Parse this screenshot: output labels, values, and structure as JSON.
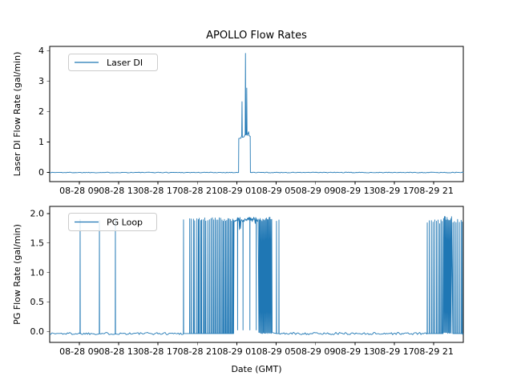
{
  "figure": {
    "title": "APOLLO Flow Rates"
  },
  "xaxis": {
    "label": "Date (GMT)",
    "hours_origin": "08-28 00:00 GMT",
    "range_hours": [
      6,
      48
    ],
    "tick_hours": [
      9,
      13,
      17,
      21,
      25,
      29,
      33,
      37,
      41,
      45
    ],
    "tick_labels": [
      "08-28 09",
      "08-28 13",
      "08-28 17",
      "08-28 21",
      "08-29 01",
      "08-29 05",
      "08-29 09",
      "08-29 13",
      "08-29 17",
      "08-29 21"
    ]
  },
  "chart_data": [
    {
      "type": "line",
      "title": "APOLLO Flow Rates",
      "ylabel": "Laser DI Flow Rate (gal/min)",
      "xlabel": "",
      "ylim": [
        -0.3,
        4.15
      ],
      "yticks": {
        "values": [
          0,
          1,
          2,
          3,
          4
        ],
        "labels": [
          "0",
          "1",
          "2",
          "3",
          "4"
        ]
      },
      "legend": {
        "label": "Laser DI",
        "position": "upper left"
      },
      "grid": false,
      "series": [
        {
          "name": "Laser DI",
          "color": "#1f77b4",
          "segments": [
            {
              "kind": "noise",
              "t0": 6.0,
              "t1": 25.18,
              "level": 0.0,
              "amp": 0.012
            },
            {
              "kind": "poly",
              "points": [
                [
                  25.18,
                  0.0
                ],
                [
                  25.2,
                  1.12
                ],
                [
                  25.42,
                  1.13
                ],
                [
                  25.5,
                  1.22
                ],
                [
                  25.53,
                  2.33
                ],
                [
                  25.56,
                  1.16
                ],
                [
                  25.72,
                  1.17
                ],
                [
                  25.85,
                  1.25
                ],
                [
                  25.88,
                  3.92
                ],
                [
                  25.91,
                  1.24
                ],
                [
                  25.98,
                  1.26
                ],
                [
                  26.01,
                  2.78
                ],
                [
                  26.04,
                  1.22
                ],
                [
                  26.16,
                  1.3
                ],
                [
                  26.2,
                  1.34
                ],
                [
                  26.24,
                  1.21
                ],
                [
                  26.36,
                  1.19
                ],
                [
                  26.38,
                  0.0
                ]
              ]
            },
            {
              "kind": "noise",
              "t0": 26.4,
              "t1": 48.0,
              "level": 0.0,
              "amp": 0.012
            }
          ]
        }
      ]
    },
    {
      "type": "line",
      "title": "",
      "ylabel": "PG Flow Rate (gal/min)",
      "xlabel": "Date (GMT)",
      "ylim": [
        -0.18,
        2.12
      ],
      "yticks": {
        "values": [
          0,
          0.5,
          1,
          1.5,
          2
        ],
        "labels": [
          "0.0",
          "0.5",
          "1.0",
          "1.5",
          "2.0"
        ]
      },
      "legend": {
        "label": "PG Loop",
        "position": "upper left"
      },
      "grid": false,
      "series": [
        {
          "name": "PG Loop",
          "color": "#1f77b4",
          "segments": [
            {
              "kind": "noise",
              "t0": 6.0,
              "t1": 9.07,
              "level": -0.03,
              "amp": 0.02
            },
            {
              "kind": "spike",
              "t": 9.09,
              "base": -0.03,
              "peak": 1.9
            },
            {
              "kind": "noise",
              "t0": 9.11,
              "t1": 11.03,
              "level": -0.03,
              "amp": 0.02
            },
            {
              "kind": "spike",
              "t": 11.05,
              "base": -0.03,
              "peak": 1.88
            },
            {
              "kind": "noise",
              "t0": 11.07,
              "t1": 12.65,
              "level": -0.03,
              "amp": 0.02
            },
            {
              "kind": "spike",
              "t": 12.67,
              "base": -0.03,
              "peak": 1.9
            },
            {
              "kind": "noise",
              "t0": 12.69,
              "t1": 19.56,
              "level": -0.03,
              "amp": 0.02
            },
            {
              "kind": "spikes",
              "base": -0.03,
              "peak": 1.9,
              "times": [
                19.59,
                20.22,
                20.38,
                20.6,
                20.72,
                20.95,
                21.1,
                21.18,
                21.34,
                21.42,
                21.6,
                21.74,
                21.85,
                22.05,
                22.22,
                22.38,
                22.52,
                22.66,
                22.8,
                22.94,
                23.08,
                23.22,
                23.36,
                23.5,
                23.62,
                23.74,
                23.86,
                23.98,
                24.1,
                24.22,
                24.34,
                24.46,
                24.58,
                24.66
              ]
            },
            {
              "kind": "band",
              "t0": 24.72,
              "t1": 27.22,
              "level": 1.9,
              "amp": 0.04,
              "dips": [
                25.05,
                25.62,
                26.3,
                26.95
              ]
            },
            {
              "kind": "block",
              "t0": 27.24,
              "t1": 28.62,
              "lo": -0.02,
              "hi": 1.9,
              "amp": 0.04
            },
            {
              "kind": "spike",
              "t": 29.03,
              "base": -0.03,
              "peak": 1.87
            },
            {
              "kind": "spike",
              "t": 29.28,
              "base": -0.03,
              "peak": 1.89
            },
            {
              "kind": "noise",
              "t0": 29.3,
              "t1": 44.3,
              "level": -0.03,
              "amp": 0.02
            },
            {
              "kind": "spikes",
              "base": -0.03,
              "peak": 1.86,
              "times": [
                44.34,
                44.55,
                44.76,
                44.93,
                45.1,
                45.28,
                45.44,
                45.6,
                45.73,
                45.86
              ]
            },
            {
              "kind": "block",
              "t0": 45.95,
              "t1": 46.85,
              "lo": -0.02,
              "hi": 1.92,
              "amp": 0.04
            },
            {
              "kind": "spikes",
              "base": -0.03,
              "peak": 1.88,
              "times": [
                46.95,
                47.1,
                47.26,
                47.42,
                47.6,
                47.78,
                47.9
              ]
            },
            {
              "kind": "noise",
              "t0": 47.92,
              "t1": 48.0,
              "level": -0.03,
              "amp": 0.02
            }
          ]
        }
      ]
    }
  ]
}
